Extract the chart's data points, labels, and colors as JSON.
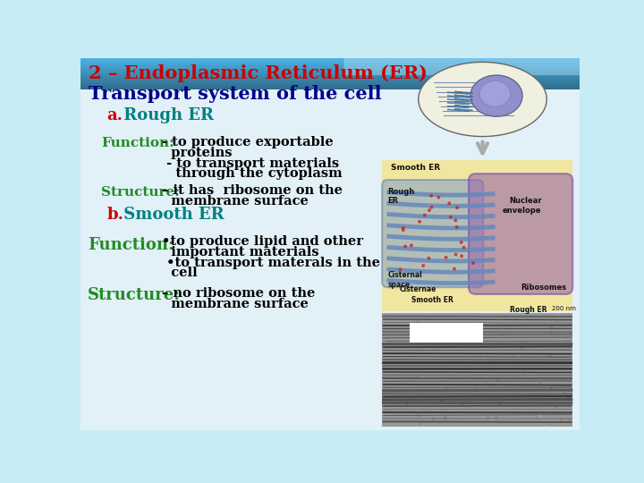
{
  "title_line1": "2 – Endoplasmic Reticulum (ER)",
  "title_line2": "Transport system of the cell",
  "title_line1_color": "#cc0000",
  "title_line2_color": "#00008b",
  "section_a_label": "a.",
  "section_a_title": " Rough ER",
  "section_a_label_color": "#cc0000",
  "section_a_title_color": "#008080",
  "function_label": "Function:",
  "function_label_color": "#228B22",
  "function_text_line1": "- to produce exportable",
  "function_text_line2": "  proteins",
  "function_text_line3": " - to transport materials",
  "function_text_line4": "   through the cytoplasm",
  "function_text_color": "#000000",
  "structure_label": "Structure:",
  "structure_label_color": "#228B22",
  "structure_text_line1": "– it has  ribosome on the",
  "structure_text_line2": "  membrane surface",
  "structure_text_color": "#000000",
  "section_b_label": "b.",
  "section_b_title": " Smooth ER",
  "section_b_label_color": "#cc0000",
  "section_b_title_color": "#008080",
  "function2_label": "Function:",
  "function2_label_color": "#228B22",
  "function2_text_line1": "•to produce lipid and other",
  "function2_text_line2": "  important materials",
  "function2_text_line3": " •to transport materals in the",
  "function2_text_line4": "  cell",
  "function2_text_color": "#000000",
  "structure2_label": "Structure:",
  "structure2_label_color": "#228B22",
  "structure2_text_line1": "– no ribosome on the",
  "structure2_text_line2": "  membrane surface",
  "structure2_text_color": "#000000",
  "slide_bg_top": "#c8e8f5",
  "slide_bg_bottom": "#ddeef8",
  "top_wave_color": "#5bb8d4",
  "er_diagram_bg": "#f0e6b0",
  "em_image_bg": "#888888"
}
